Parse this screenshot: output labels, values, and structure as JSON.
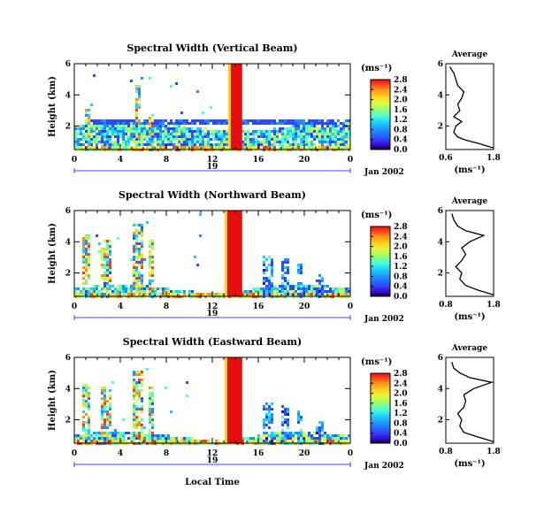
{
  "colors": {
    "scale": [
      "#000000",
      "#3a00c8",
      "#2f47ff",
      "#1f8cff",
      "#19cfff",
      "#4dffd2",
      "#9dff70",
      "#e4f73a",
      "#ffd21f",
      "#ff8e19",
      "#ff3b1a",
      "#e80d0d"
    ],
    "axis": "#000000",
    "time_bar": "#3a47ff"
  },
  "panels": [
    {
      "title": "Spectral Width (Vertical Beam)",
      "ylabel": "Height (km)",
      "units": "(ms⁻¹)",
      "date_label": "Jan 2002",
      "day_label": "19",
      "avg_title": "Average",
      "avg_xlabel": "(ms⁻¹)"
    },
    {
      "title": "Spectral Width (Northward Beam)",
      "ylabel": "Height (km)",
      "units": "(ms⁻¹)",
      "date_label": "Jan 2002",
      "day_label": "19",
      "avg_title": "Average",
      "avg_xlabel": "(ms⁻¹)"
    },
    {
      "title": "Spectral Width (Eastward Beam)",
      "ylabel": "Height (km)",
      "units": "(ms⁻¹)",
      "date_label": "Jan 2002",
      "day_label": "19",
      "avg_title": "Average",
      "avg_xlabel": "(ms⁻¹)"
    }
  ],
  "xlabel": "Local Time",
  "chart_data": {
    "type": "heatmap",
    "x": {
      "label": "Local Time",
      "range": [
        0,
        24
      ],
      "ticks": [
        "0",
        "4",
        "8",
        "12",
        "16",
        "20",
        "0"
      ],
      "tick_values": [
        0,
        4,
        8,
        12,
        16,
        20,
        24
      ]
    },
    "y": {
      "label": "Height (km)",
      "range": [
        0.5,
        6
      ],
      "ticks": [
        "2",
        "4",
        "6"
      ],
      "tick_values": [
        2,
        4,
        6
      ]
    },
    "colorbar": {
      "units": "(ms⁻¹)",
      "range": [
        0,
        2.8
      ],
      "vertical_ticks": [
        "0.0",
        "0.4",
        "0.8",
        "1.2",
        "1.6",
        "2.0",
        "2.4",
        "2.8"
      ],
      "vertical_tick_values": [
        0,
        0.4,
        0.8,
        1.2,
        1.6,
        2.0,
        2.4,
        2.8
      ],
      "oblique_ticks": [
        "0.0",
        "0.4",
        "0.8",
        "1.2",
        "1.6",
        "2.0",
        "2.4",
        "2.8"
      ],
      "oblique_tick_values": [
        0,
        0.4,
        0.8,
        1.2,
        1.6,
        2.0,
        2.4,
        2.8
      ]
    },
    "average_profile": {
      "x_range": [
        0.6,
        1.8
      ],
      "x_ticks_vertical": [
        "0.6",
        "1.8"
      ],
      "x_ticks_oblique": [
        "0.8",
        "1.8"
      ],
      "y_ticks": [
        "2",
        "4",
        "6"
      ],
      "vertical": [
        [
          1.8,
          0.6
        ],
        [
          1.4,
          0.9
        ],
        [
          1.1,
          1.1
        ],
        [
          0.9,
          1.3
        ],
        [
          0.8,
          1.6
        ],
        [
          0.85,
          2.0
        ],
        [
          1.0,
          2.3
        ],
        [
          0.8,
          2.6
        ],
        [
          0.95,
          3.0
        ],
        [
          0.9,
          3.4
        ],
        [
          1.0,
          3.8
        ],
        [
          1.05,
          4.2
        ],
        [
          0.9,
          4.6
        ],
        [
          0.85,
          5.0
        ],
        [
          0.8,
          5.4
        ],
        [
          0.7,
          5.8
        ]
      ],
      "northward": [
        [
          1.8,
          0.6
        ],
        [
          1.4,
          0.9
        ],
        [
          1.1,
          1.2
        ],
        [
          0.95,
          1.6
        ],
        [
          1.0,
          2.0
        ],
        [
          0.85,
          2.4
        ],
        [
          1.0,
          2.8
        ],
        [
          1.1,
          3.2
        ],
        [
          1.0,
          3.6
        ],
        [
          1.2,
          4.0
        ],
        [
          1.55,
          4.4
        ],
        [
          1.1,
          4.7
        ],
        [
          0.9,
          5.0
        ],
        [
          0.8,
          5.4
        ],
        [
          0.75,
          5.8
        ]
      ],
      "eastward": [
        [
          1.8,
          0.6
        ],
        [
          1.4,
          0.9
        ],
        [
          1.05,
          1.2
        ],
        [
          0.95,
          1.6
        ],
        [
          1.0,
          2.0
        ],
        [
          0.9,
          2.4
        ],
        [
          1.05,
          2.8
        ],
        [
          1.1,
          3.2
        ],
        [
          1.05,
          3.6
        ],
        [
          1.3,
          4.0
        ],
        [
          1.75,
          4.4
        ],
        [
          1.2,
          4.7
        ],
        [
          0.95,
          5.0
        ],
        [
          0.8,
          5.3
        ],
        [
          0.75,
          5.7
        ]
      ]
    },
    "features": [
      {
        "panel": "Vertical Beam",
        "description_hours": [
          13.6,
          14.6
        ],
        "value": 2.8,
        "height_range": [
          0.5,
          6
        ]
      },
      {
        "panel": "Northward Beam",
        "description_hours": [
          13.3,
          14.6
        ],
        "value": 2.8,
        "height_range": [
          0.5,
          6
        ]
      },
      {
        "panel": "Eastward Beam",
        "description_hours": [
          13.3,
          14.6
        ],
        "value": 2.8,
        "height_range": [
          0.5,
          6
        ]
      }
    ]
  }
}
